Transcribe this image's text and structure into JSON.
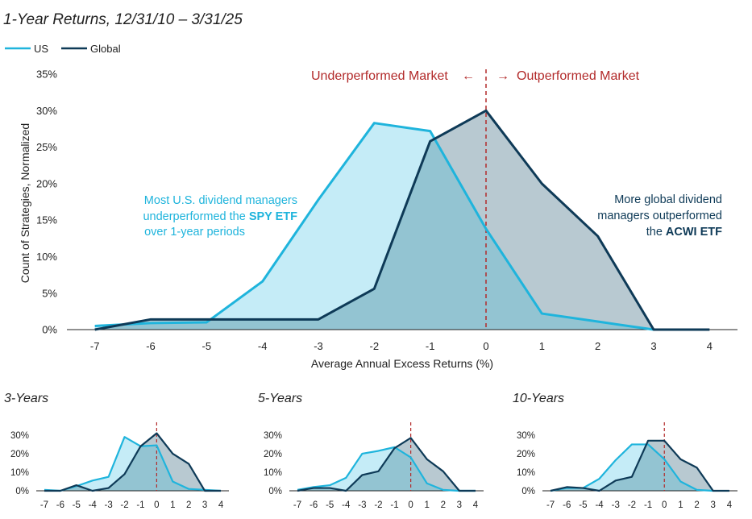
{
  "colors": {
    "us": "#1fb4dc",
    "global": "#0e3a57",
    "us_fill": "#c5ecf7",
    "global_fill": "#b8c9d1",
    "overlap_fill": "#93c4d2",
    "marker": "#b22a2a"
  },
  "annotations": {
    "underperformed": "Underperformed Market",
    "under_arrow": "←",
    "outperformed": "Outperformed Market",
    "out_arrow": "→",
    "us_note": [
      "Most U.S. dividend managers",
      "underperformed the ",
      "SPY ETF",
      "over 1-year periods"
    ],
    "global_note": [
      "More global dividend",
      "managers outperformed",
      "the ",
      "ACWI ETF"
    ]
  },
  "chart_data": [
    {
      "id": "main",
      "type": "area",
      "title": "1-Year Returns, 12/31/10 – 3/31/25",
      "xlabel": "Average Annual Excess Returns (%)",
      "ylabel": "Count of Strategies, Normalized",
      "legend": "top-left",
      "x_ticks": [
        -7,
        -6,
        -5,
        -4,
        -3,
        -2,
        -1,
        0,
        1,
        2,
        3,
        4
      ],
      "y_ticks": [
        "0%",
        "5%",
        "10%",
        "15%",
        "20%",
        "25%",
        "30%",
        "35%"
      ],
      "ylim": [
        0,
        35
      ],
      "xlim": [
        -7.5,
        4.5
      ],
      "series": [
        {
          "name": "US",
          "x": [
            -7,
            -6,
            -5,
            -4,
            -3,
            -2,
            -1,
            0,
            1,
            2,
            3
          ],
          "values": [
            0.5,
            0.9,
            1.0,
            6.6,
            17.8,
            28.3,
            27.2,
            13.8,
            2.2,
            1.1,
            0
          ]
        },
        {
          "name": "Global",
          "x": [
            -7,
            -6,
            -5,
            -4,
            -3,
            -2,
            -1,
            0,
            1,
            2,
            3,
            4
          ],
          "values": [
            0,
            1.4,
            1.4,
            1.4,
            1.4,
            5.6,
            25.8,
            30.0,
            20.0,
            12.8,
            0,
            0
          ]
        }
      ]
    },
    {
      "id": "3y",
      "type": "area",
      "title": "3-Years",
      "x_ticks": [
        -7,
        -6,
        -5,
        -4,
        -3,
        -2,
        -1,
        0,
        1,
        2,
        3,
        4
      ],
      "y_ticks": [
        "0%",
        "10%",
        "20%",
        "30%"
      ],
      "ylim": [
        0,
        33
      ],
      "xlim": [
        -7.5,
        4.5
      ],
      "series": [
        {
          "name": "US",
          "x": [
            -7,
            -6,
            -5,
            -4,
            -3,
            -2,
            -1,
            0,
            1,
            2,
            3,
            4
          ],
          "values": [
            0.5,
            0,
            2.5,
            5.5,
            7.5,
            29,
            24,
            24.5,
            5,
            1,
            0.5,
            0
          ]
        },
        {
          "name": "Global",
          "x": [
            -7,
            -6,
            -5,
            -4,
            -3,
            -2,
            -1,
            0,
            1,
            2,
            3,
            4
          ],
          "values": [
            0,
            0,
            3,
            0,
            1.5,
            9,
            24,
            31,
            20,
            14.5,
            0,
            0
          ]
        }
      ]
    },
    {
      "id": "5y",
      "type": "area",
      "title": "5-Years",
      "x_ticks": [
        -7,
        -6,
        -5,
        -4,
        -3,
        -2,
        -1,
        0,
        1,
        2,
        3,
        4
      ],
      "y_ticks": [
        "0%",
        "10%",
        "20%",
        "30%"
      ],
      "ylim": [
        0,
        33
      ],
      "xlim": [
        -7.5,
        4.5
      ],
      "series": [
        {
          "name": "US",
          "x": [
            -7,
            -6,
            -5,
            -4,
            -3,
            -2,
            -1,
            0,
            1,
            2,
            3,
            4
          ],
          "values": [
            0.5,
            2,
            3,
            7,
            20,
            21.5,
            23.5,
            18,
            4,
            0.5,
            0,
            0
          ]
        },
        {
          "name": "Global",
          "x": [
            -7,
            -6,
            -5,
            -4,
            -3,
            -2,
            -1,
            0,
            1,
            2,
            3,
            4
          ],
          "values": [
            0,
            1.5,
            1.5,
            0,
            8.5,
            10.5,
            23,
            28.5,
            17,
            10.5,
            0,
            0
          ]
        }
      ]
    },
    {
      "id": "10y",
      "type": "area",
      "title": "10-Years",
      "x_ticks": [
        -7,
        -6,
        -5,
        -4,
        -3,
        -2,
        -1,
        0,
        1,
        2,
        3,
        4
      ],
      "y_ticks": [
        "0%",
        "10%",
        "20%",
        "30%"
      ],
      "ylim": [
        0,
        33
      ],
      "xlim": [
        -7.5,
        4.5
      ],
      "series": [
        {
          "name": "US",
          "x": [
            -7,
            -6,
            -5,
            -4,
            -3,
            -2,
            -1,
            0,
            1,
            2,
            3
          ],
          "values": [
            0,
            1.5,
            1.5,
            6.5,
            16.5,
            25,
            25,
            17,
            5,
            0.5,
            0
          ]
        },
        {
          "name": "Global",
          "x": [
            -7,
            -6,
            -5,
            -4,
            -3,
            -2,
            -1,
            0,
            1,
            2,
            3,
            4
          ],
          "values": [
            0,
            2,
            1.5,
            0,
            5.5,
            7.5,
            27,
            27,
            17,
            12.5,
            0,
            0
          ]
        }
      ]
    }
  ]
}
